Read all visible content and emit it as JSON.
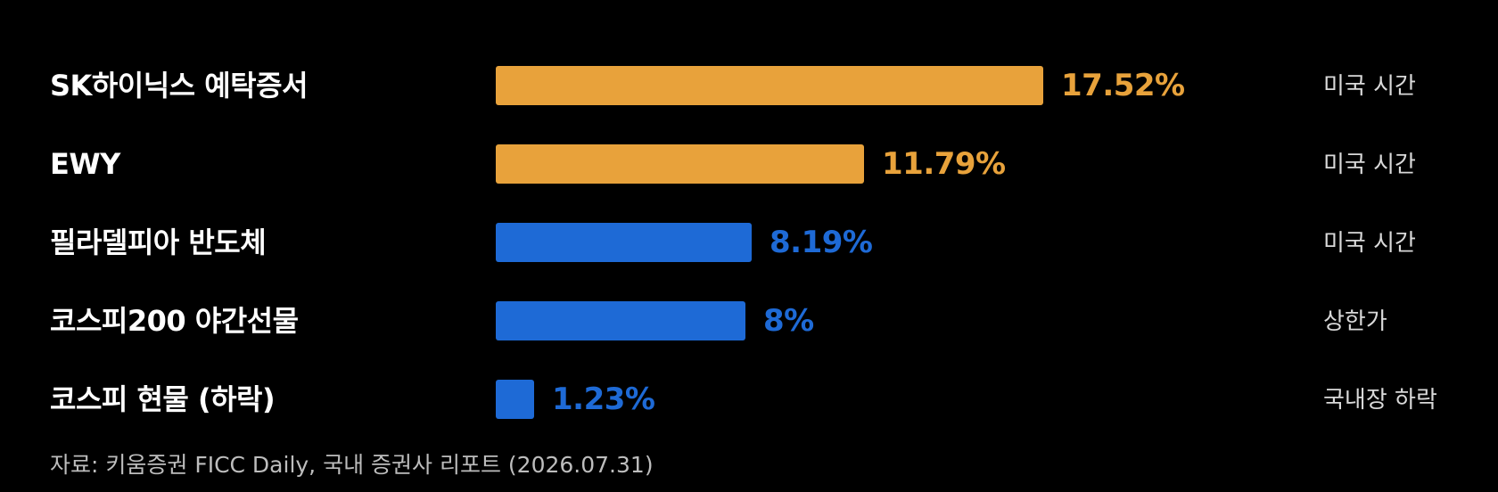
{
  "colors": {
    "highlight": "#E8A23B",
    "normal": "#1E6AD6",
    "background": "#000000"
  },
  "chart_data": {
    "type": "bar",
    "orientation": "horizontal",
    "categories": [
      "SK하이닉스 예탁증서",
      "EWY",
      "필라델피아 반도체",
      "코스피200 야간선물",
      "코스피 현물 (하락)"
    ],
    "values": [
      17.52,
      11.79,
      8.19,
      8,
      1.23
    ],
    "value_labels": [
      "17.52%",
      "11.79%",
      "8.19%",
      "8%",
      "1.23%"
    ],
    "bar_colors": [
      "#E8A23B",
      "#E8A23B",
      "#1E6AD6",
      "#1E6AD6",
      "#1E6AD6"
    ],
    "notes": [
      "미국 시간",
      "미국 시간",
      "미국 시간",
      "상한가",
      "국내장 하락"
    ],
    "xlim": [
      0,
      17.52
    ],
    "grid": false,
    "title": "",
    "xlabel": "",
    "ylabel": "",
    "source": "자료: 키움증권 FICC Daily, 국내 증권사 리포트 (2026.07.31)"
  }
}
